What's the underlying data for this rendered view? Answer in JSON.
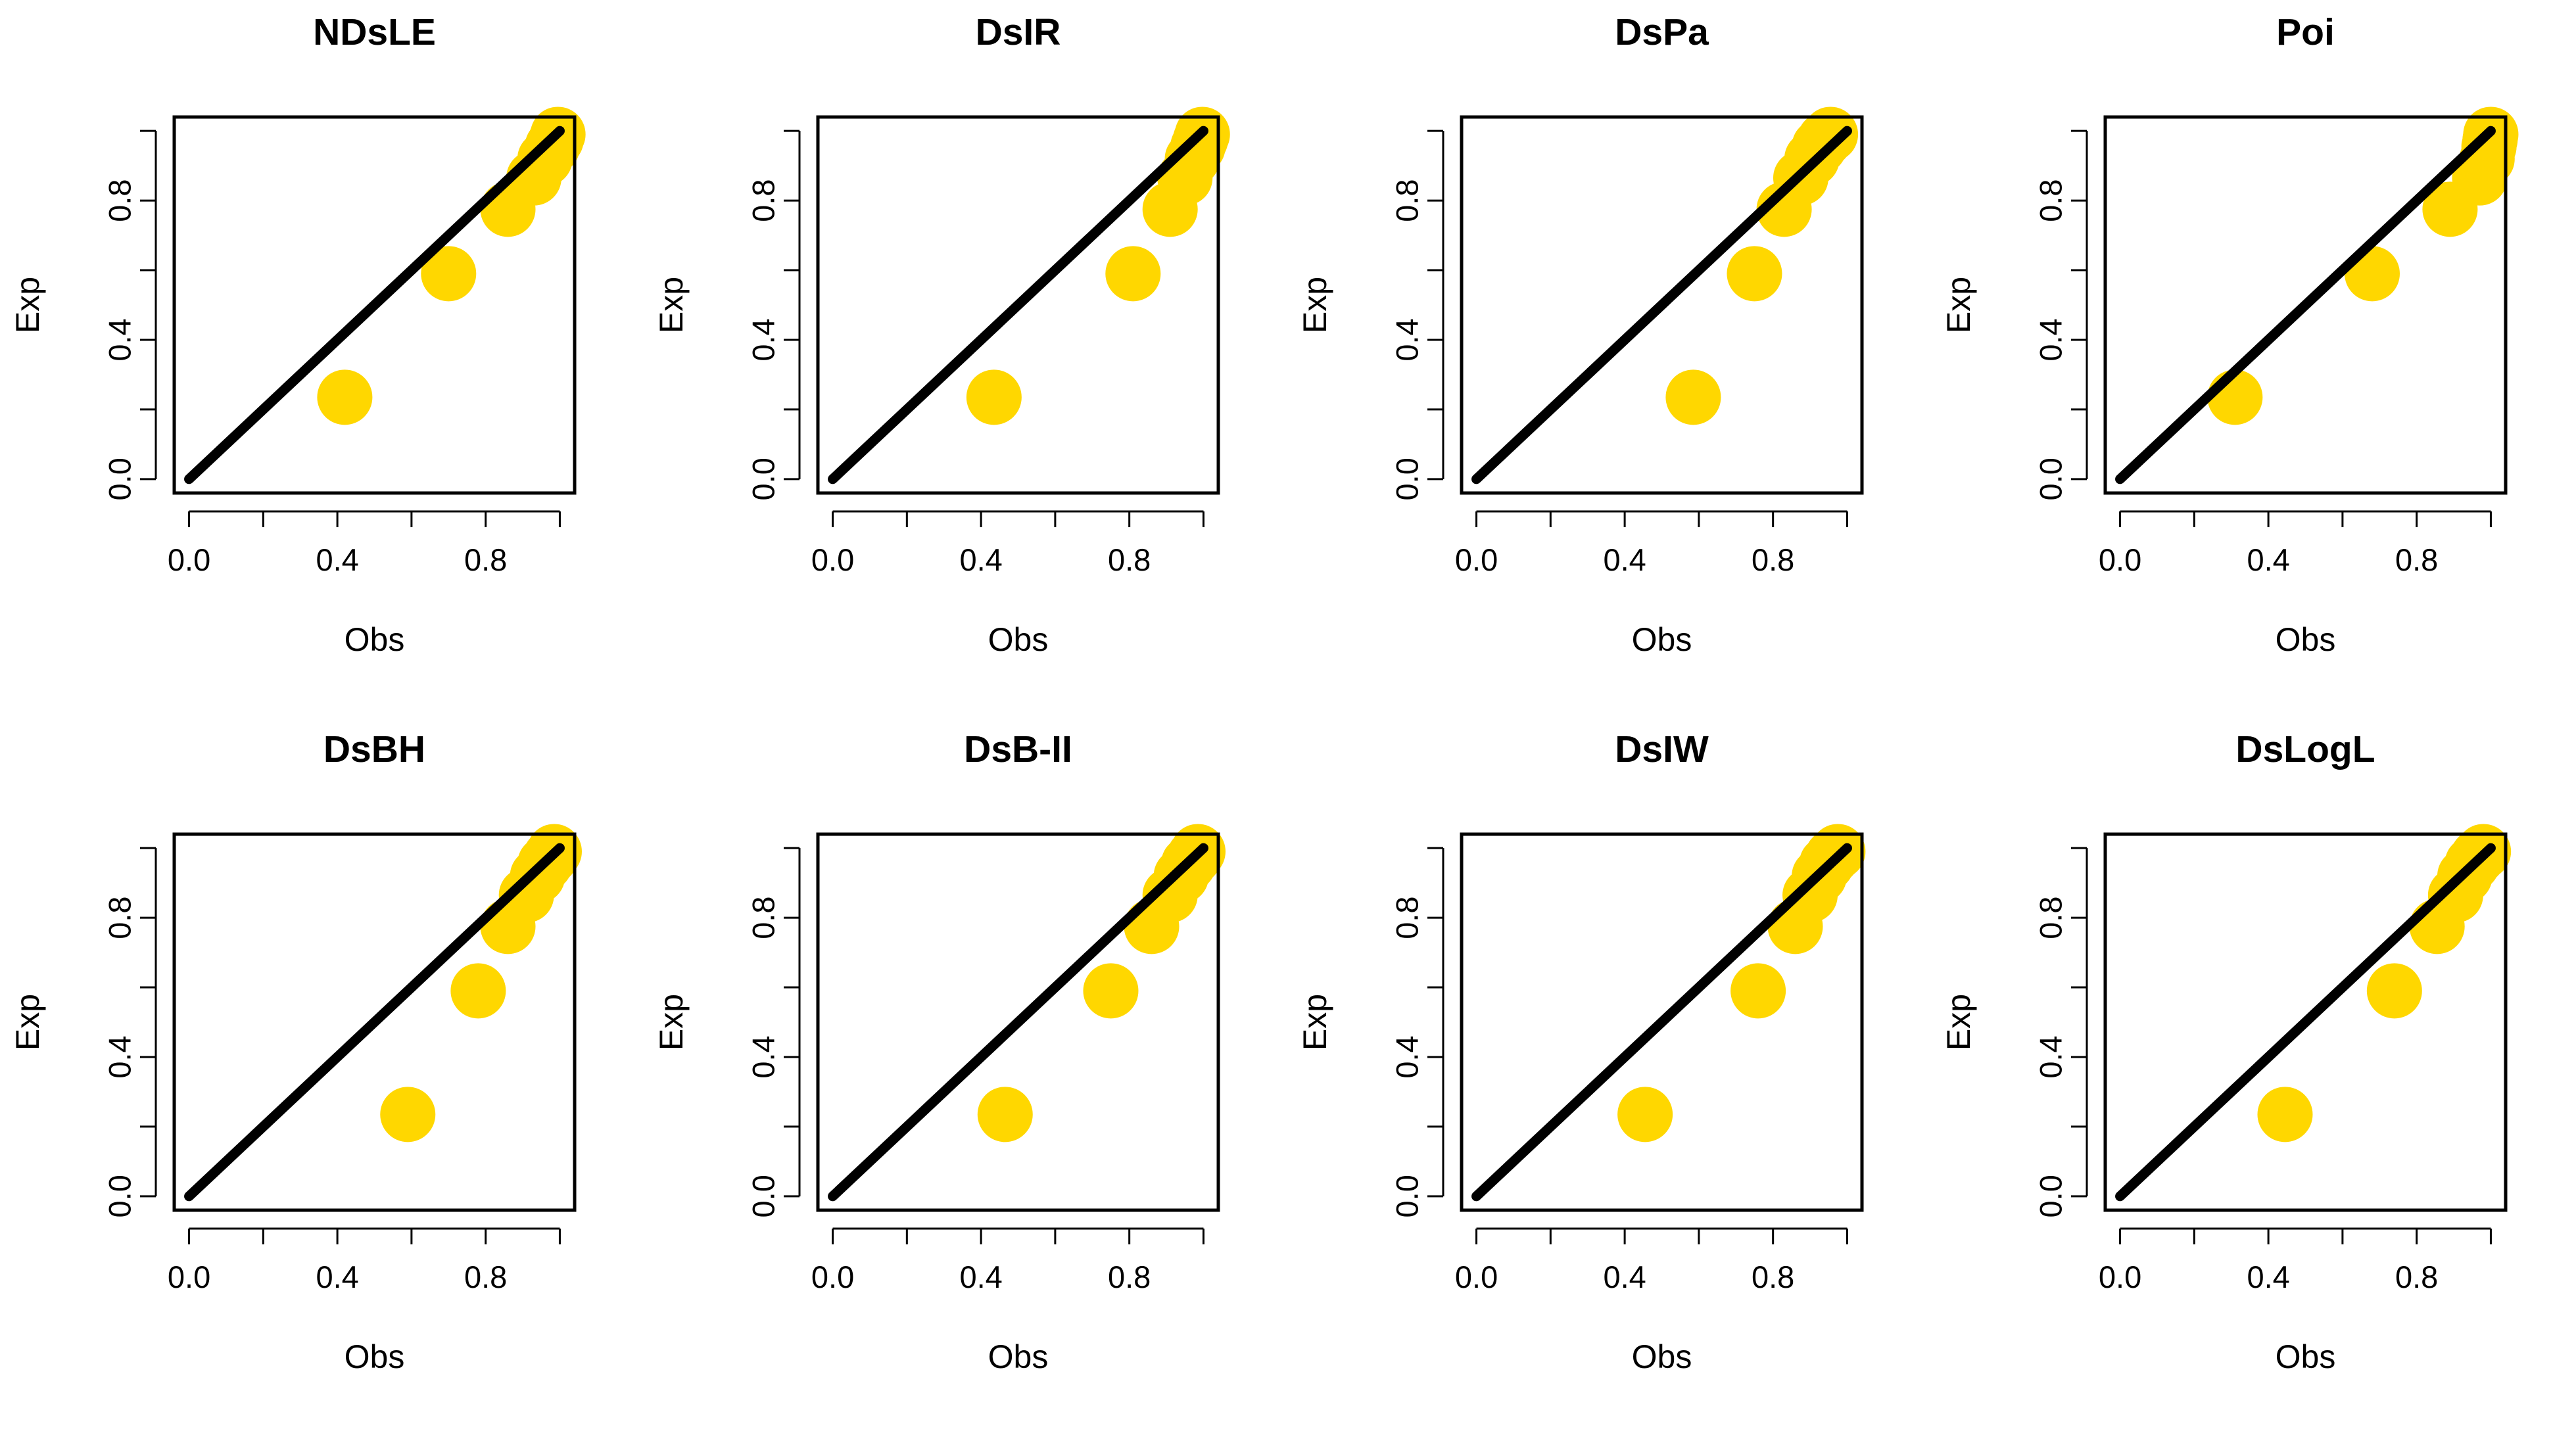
{
  "figure": {
    "point_color": "#FFD700",
    "line_color": "#000000"
  },
  "chart_data": [
    {
      "type": "scatter",
      "title": "NDsLE",
      "xlabel": "Obs",
      "ylabel": "Exp",
      "xlim": [
        0,
        1
      ],
      "ylim": [
        0,
        1
      ],
      "xticks": [
        "0.0",
        "0.4",
        "0.8"
      ],
      "yticks": [
        "0.0",
        "0.4",
        "0.8"
      ],
      "reference_line": [
        [
          0,
          0
        ],
        [
          1,
          1
        ]
      ],
      "points": [
        [
          0.42,
          0.235
        ],
        [
          0.7,
          0.59
        ],
        [
          0.86,
          0.775
        ],
        [
          0.93,
          0.865
        ],
        [
          0.96,
          0.92
        ],
        [
          0.98,
          0.955
        ],
        [
          0.99,
          0.975
        ],
        [
          0.995,
          0.99
        ]
      ]
    },
    {
      "type": "scatter",
      "title": "DsIR",
      "xlabel": "Obs",
      "ylabel": "Exp",
      "xlim": [
        0,
        1
      ],
      "ylim": [
        0,
        1
      ],
      "xticks": [
        "0.0",
        "0.4",
        "0.8"
      ],
      "yticks": [
        "0.0",
        "0.4",
        "0.8"
      ],
      "reference_line": [
        [
          0,
          0
        ],
        [
          1,
          1
        ]
      ],
      "points": [
        [
          0.435,
          0.235
        ],
        [
          0.81,
          0.59
        ],
        [
          0.91,
          0.775
        ],
        [
          0.95,
          0.865
        ],
        [
          0.97,
          0.92
        ],
        [
          0.985,
          0.955
        ],
        [
          0.992,
          0.975
        ],
        [
          0.997,
          0.99
        ]
      ]
    },
    {
      "type": "scatter",
      "title": "DsPa",
      "xlabel": "Obs",
      "ylabel": "Exp",
      "xlim": [
        0,
        1
      ],
      "ylim": [
        0,
        1
      ],
      "xticks": [
        "0.0",
        "0.4",
        "0.8"
      ],
      "yticks": [
        "0.0",
        "0.4",
        "0.8"
      ],
      "reference_line": [
        [
          0,
          0
        ],
        [
          1,
          1
        ]
      ],
      "points": [
        [
          0.585,
          0.235
        ],
        [
          0.75,
          0.59
        ],
        [
          0.83,
          0.775
        ],
        [
          0.875,
          0.865
        ],
        [
          0.905,
          0.92
        ],
        [
          0.925,
          0.955
        ],
        [
          0.94,
          0.975
        ],
        [
          0.955,
          0.99
        ]
      ]
    },
    {
      "type": "scatter",
      "title": "Poi",
      "xlabel": "Obs",
      "ylabel": "Exp",
      "xlim": [
        0,
        1
      ],
      "ylim": [
        0,
        1
      ],
      "xticks": [
        "0.0",
        "0.4",
        "0.8"
      ],
      "yticks": [
        "0.0",
        "0.4",
        "0.8"
      ],
      "reference_line": [
        [
          0,
          0
        ],
        [
          1,
          1
        ]
      ],
      "points": [
        [
          0.31,
          0.235
        ],
        [
          0.68,
          0.59
        ],
        [
          0.89,
          0.775
        ],
        [
          0.97,
          0.865
        ],
        [
          0.99,
          0.92
        ],
        [
          0.995,
          0.955
        ],
        [
          0.998,
          0.975
        ],
        [
          1.0,
          0.99
        ]
      ]
    },
    {
      "type": "scatter",
      "title": "DsBH",
      "xlabel": "Obs",
      "ylabel": "Exp",
      "xlim": [
        0,
        1
      ],
      "ylim": [
        0,
        1
      ],
      "xticks": [
        "0.0",
        "0.4",
        "0.8"
      ],
      "yticks": [
        "0.0",
        "0.4",
        "0.8"
      ],
      "reference_line": [
        [
          0,
          0
        ],
        [
          1,
          1
        ]
      ],
      "points": [
        [
          0.59,
          0.235
        ],
        [
          0.78,
          0.59
        ],
        [
          0.86,
          0.775
        ],
        [
          0.91,
          0.865
        ],
        [
          0.94,
          0.92
        ],
        [
          0.96,
          0.955
        ],
        [
          0.975,
          0.975
        ],
        [
          0.985,
          0.99
        ]
      ]
    },
    {
      "type": "scatter",
      "title": "DsB-II",
      "xlabel": "Obs",
      "ylabel": "Exp",
      "xlim": [
        0,
        1
      ],
      "ylim": [
        0,
        1
      ],
      "xticks": [
        "0.0",
        "0.4",
        "0.8"
      ],
      "yticks": [
        "0.0",
        "0.4",
        "0.8"
      ],
      "reference_line": [
        [
          0,
          0
        ],
        [
          1,
          1
        ]
      ],
      "points": [
        [
          0.465,
          0.235
        ],
        [
          0.75,
          0.59
        ],
        [
          0.86,
          0.775
        ],
        [
          0.91,
          0.865
        ],
        [
          0.94,
          0.92
        ],
        [
          0.96,
          0.955
        ],
        [
          0.975,
          0.975
        ],
        [
          0.985,
          0.99
        ]
      ]
    },
    {
      "type": "scatter",
      "title": "DsIW",
      "xlabel": "Obs",
      "ylabel": "Exp",
      "xlim": [
        0,
        1
      ],
      "ylim": [
        0,
        1
      ],
      "xticks": [
        "0.0",
        "0.4",
        "0.8"
      ],
      "yticks": [
        "0.0",
        "0.4",
        "0.8"
      ],
      "reference_line": [
        [
          0,
          0
        ],
        [
          1,
          1
        ]
      ],
      "points": [
        [
          0.455,
          0.235
        ],
        [
          0.76,
          0.59
        ],
        [
          0.86,
          0.775
        ],
        [
          0.9,
          0.865
        ],
        [
          0.925,
          0.92
        ],
        [
          0.945,
          0.955
        ],
        [
          0.96,
          0.975
        ],
        [
          0.975,
          0.99
        ]
      ]
    },
    {
      "type": "scatter",
      "title": "DsLogL",
      "xlabel": "Obs",
      "ylabel": "Exp",
      "xlim": [
        0,
        1
      ],
      "ylim": [
        0,
        1
      ],
      "xticks": [
        "0.0",
        "0.4",
        "0.8"
      ],
      "yticks": [
        "0.0",
        "0.4",
        "0.8"
      ],
      "reference_line": [
        [
          0,
          0
        ],
        [
          1,
          1
        ]
      ],
      "points": [
        [
          0.445,
          0.235
        ],
        [
          0.74,
          0.59
        ],
        [
          0.855,
          0.775
        ],
        [
          0.905,
          0.865
        ],
        [
          0.93,
          0.92
        ],
        [
          0.95,
          0.955
        ],
        [
          0.965,
          0.975
        ],
        [
          0.98,
          0.99
        ]
      ]
    }
  ]
}
